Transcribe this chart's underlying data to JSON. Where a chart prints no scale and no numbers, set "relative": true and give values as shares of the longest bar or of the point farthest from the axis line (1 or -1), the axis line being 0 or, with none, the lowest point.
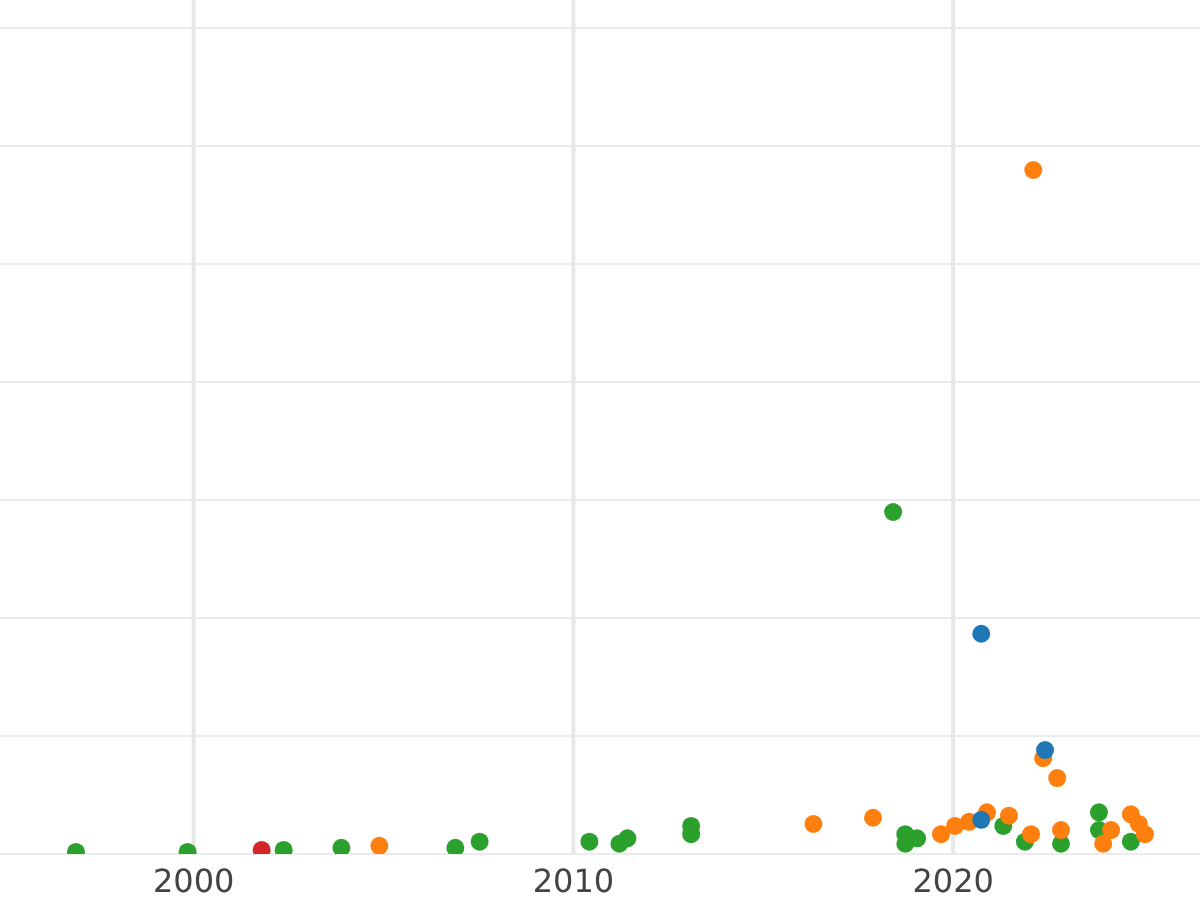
{
  "chart_data": {
    "type": "scatter",
    "relative": true,
    "grid": true,
    "marker": "circle",
    "xlim": [
      1994.9,
      2026.5
    ],
    "xticks": [
      2000,
      2010,
      2020
    ],
    "series": [
      {
        "color": "#2ca02c",
        "x": [
          1996.9,
          1999.84,
          2002.37,
          2003.89,
          2006.89,
          2007.53,
          2010.42,
          2011.21,
          2011.42,
          2013.1,
          2013.1,
          2018.42,
          2018.74,
          2018.74,
          2019.05,
          2021.32,
          2021.89,
          2022.84,
          2023.84,
          2023.84,
          2024.68
        ],
        "values": [
          0.003,
          0.003,
          0.006,
          0.009,
          0.009,
          0.018,
          0.018,
          0.015,
          0.023,
          0.041,
          0.029,
          0.5,
          0.029,
          0.015,
          0.023,
          0.041,
          0.018,
          0.015,
          0.061,
          0.035,
          0.018
        ]
      },
      {
        "color": "#d62728",
        "x": [
          2001.79
        ],
        "values": [
          0.006
        ]
      },
      {
        "color": "#ff7f0e",
        "x": [
          2004.89,
          2016.32,
          2017.89,
          2019.68,
          2020.05,
          2020.42,
          2020.89,
          2021.47,
          2022.11,
          2022.05,
          2022.37,
          2022.74,
          2022.84,
          2023.95,
          2024.16,
          2024.68,
          2024.89,
          2025.05
        ],
        "values": [
          0.012,
          0.044,
          0.053,
          0.029,
          0.041,
          0.047,
          0.061,
          0.056,
          1,
          0.029,
          0.14,
          0.111,
          0.035,
          0.015,
          0.035,
          0.058,
          0.044,
          0.029
        ]
      },
      {
        "color": "#1f77b4",
        "x": [
          2020.74,
          2020.74,
          2022.42
        ],
        "values": [
          0.322,
          0.05,
          0.152
        ]
      }
    ]
  }
}
